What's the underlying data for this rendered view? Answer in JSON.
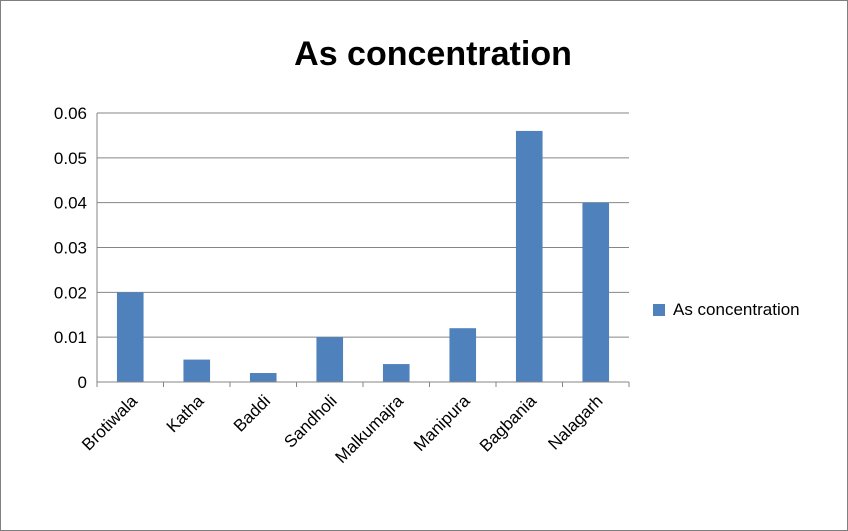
{
  "chart_data": {
    "type": "bar",
    "title": "As concentration",
    "categories": [
      "Brotiwala",
      "Katha",
      "Baddi",
      "Sandholi",
      "Malkumajra",
      "Manipura",
      "Bagbania",
      "Nalagarh"
    ],
    "series": [
      {
        "name": "As concentration",
        "values": [
          0.02,
          0.005,
          0.002,
          0.01,
          0.004,
          0.012,
          0.056,
          0.04
        ],
        "color": "#4f81bd"
      }
    ],
    "ylim": [
      0,
      0.06
    ],
    "yticks": [
      "0",
      "0.01",
      "0.02",
      "0.03",
      "0.04",
      "0.05",
      "0.06"
    ],
    "grid": true,
    "legend_position": "right"
  }
}
